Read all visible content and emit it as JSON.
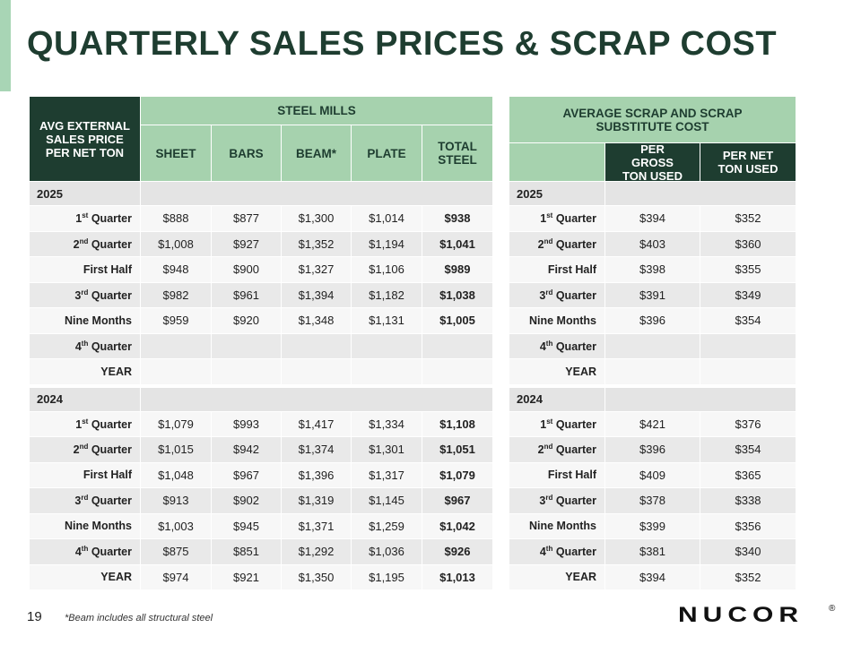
{
  "title": "QUARTERLY SALES PRICES & SCRAP COST",
  "steel_mills": {
    "corner": "AVG EXTERNAL SALES PRICE PER NET TON",
    "group": "STEEL MILLS",
    "columns": [
      "SHEET",
      "BARS",
      "BEAM*",
      "PLATE",
      "TOTAL STEEL"
    ],
    "sections": [
      {
        "year": "2025",
        "rows": [
          {
            "label": {
              "pre": "1",
              "sup": "st",
              "post": " Quarter"
            },
            "values": [
              "$888",
              "$877",
              "$1,300",
              "$1,014",
              "$938"
            ]
          },
          {
            "label": {
              "pre": "2",
              "sup": "nd",
              "post": " Quarter"
            },
            "values": [
              "$1,008",
              "$927",
              "$1,352",
              "$1,194",
              "$1,041"
            ]
          },
          {
            "label": {
              "pre": "First Half"
            },
            "values": [
              "$948",
              "$900",
              "$1,327",
              "$1,106",
              "$989"
            ]
          },
          {
            "label": {
              "pre": "3",
              "sup": "rd",
              "post": " Quarter"
            },
            "values": [
              "$982",
              "$961",
              "$1,394",
              "$1,182",
              "$1,038"
            ]
          },
          {
            "label": {
              "pre": "Nine Months"
            },
            "values": [
              "$959",
              "$920",
              "$1,348",
              "$1,131",
              "$1,005"
            ]
          },
          {
            "label": {
              "pre": "4",
              "sup": "th",
              "post": " Quarter"
            },
            "values": []
          },
          {
            "label": {
              "pre": "YEAR"
            },
            "values": []
          }
        ]
      },
      {
        "year": "2024",
        "rows": [
          {
            "label": {
              "pre": "1",
              "sup": "st",
              "post": " Quarter"
            },
            "values": [
              "$1,079",
              "$993",
              "$1,417",
              "$1,334",
              "$1,108"
            ]
          },
          {
            "label": {
              "pre": "2",
              "sup": "nd",
              "post": " Quarter"
            },
            "values": [
              "$1,015",
              "$942",
              "$1,374",
              "$1,301",
              "$1,051"
            ]
          },
          {
            "label": {
              "pre": "First Half"
            },
            "values": [
              "$1,048",
              "$967",
              "$1,396",
              "$1,317",
              "$1,079"
            ]
          },
          {
            "label": {
              "pre": "3",
              "sup": "rd",
              "post": " Quarter"
            },
            "values": [
              "$913",
              "$902",
              "$1,319",
              "$1,145",
              "$967"
            ]
          },
          {
            "label": {
              "pre": "Nine Months"
            },
            "values": [
              "$1,003",
              "$945",
              "$1,371",
              "$1,259",
              "$1,042"
            ]
          },
          {
            "label": {
              "pre": "4",
              "sup": "th",
              "post": " Quarter"
            },
            "values": [
              "$875",
              "$851",
              "$1,292",
              "$1,036",
              "$926"
            ]
          },
          {
            "label": {
              "pre": "YEAR"
            },
            "values": [
              "$974",
              "$921",
              "$1,350",
              "$1,195",
              "$1,013"
            ]
          }
        ]
      }
    ]
  },
  "scrap": {
    "group": "AVERAGE SCRAP AND SCRAP SUBSTITUTE COST",
    "columns": [
      "PER GROSS TON USED",
      "PER NET TON USED"
    ],
    "sections": [
      {
        "year": "2025",
        "rows": [
          {
            "label": {
              "pre": "1",
              "sup": "st",
              "post": " Quarter"
            },
            "values": [
              "$394",
              "$352"
            ]
          },
          {
            "label": {
              "pre": "2",
              "sup": "nd",
              "post": " Quarter"
            },
            "values": [
              "$403",
              "$360"
            ]
          },
          {
            "label": {
              "pre": "First Half"
            },
            "values": [
              "$398",
              "$355"
            ]
          },
          {
            "label": {
              "pre": "3",
              "sup": "rd",
              "post": " Quarter"
            },
            "values": [
              "$391",
              "$349"
            ]
          },
          {
            "label": {
              "pre": "Nine Months"
            },
            "values": [
              "$396",
              "$354"
            ]
          },
          {
            "label": {
              "pre": "4",
              "sup": "th",
              "post": " Quarter"
            },
            "values": []
          },
          {
            "label": {
              "pre": "YEAR"
            },
            "values": []
          }
        ]
      },
      {
        "year": "2024",
        "rows": [
          {
            "label": {
              "pre": "1",
              "sup": "st",
              "post": " Quarter"
            },
            "values": [
              "$421",
              "$376"
            ]
          },
          {
            "label": {
              "pre": "2",
              "sup": "nd",
              "post": " Quarter"
            },
            "values": [
              "$396",
              "$354"
            ]
          },
          {
            "label": {
              "pre": "First Half"
            },
            "values": [
              "$409",
              "$365"
            ]
          },
          {
            "label": {
              "pre": "3",
              "sup": "rd",
              "post": " Quarter"
            },
            "values": [
              "$378",
              "$338"
            ]
          },
          {
            "label": {
              "pre": "Nine Months"
            },
            "values": [
              "$399",
              "$356"
            ]
          },
          {
            "label": {
              "pre": "4",
              "sup": "th",
              "post": " Quarter"
            },
            "values": [
              "$381",
              "$340"
            ]
          },
          {
            "label": {
              "pre": "YEAR"
            },
            "values": [
              "$394",
              "$352"
            ]
          }
        ]
      }
    ]
  },
  "footer": {
    "page": "19",
    "note": "*Beam includes all structural steel",
    "logo": "NUCOR",
    "logo_mark": "®"
  }
}
